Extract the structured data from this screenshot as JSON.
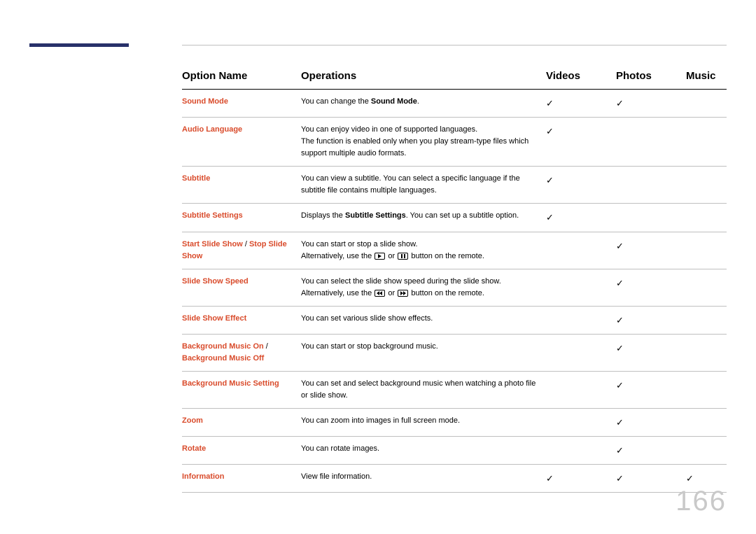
{
  "accent_color": "#d94b2b",
  "header_rule_color": "#28316a",
  "page_number": "166",
  "columns": {
    "name": "Option Name",
    "ops": "Operations",
    "videos": "Videos",
    "photos": "Photos",
    "music": "Music"
  },
  "tick_glyph": "✓",
  "rows": {
    "sound_mode": {
      "name_html": "Sound Mode",
      "ops_pre": "You can change the ",
      "ops_bold": "Sound Mode",
      "ops_post": ".",
      "videos": true,
      "photos": true,
      "music": false
    },
    "audio_language": {
      "name_html": "Audio Language",
      "ops_line1": "You can enjoy video in one of supported languages.",
      "ops_line2": "The function is enabled only when you play stream-type files which support multiple audio formats.",
      "videos": true,
      "photos": false,
      "music": false
    },
    "subtitle": {
      "name_html": "Subtitle",
      "ops": "You can view a subtitle. You can select a specific language if the subtitle file contains multiple languages.",
      "videos": true,
      "photos": false,
      "music": false
    },
    "subtitle_settings": {
      "name_html": "Subtitle Settings",
      "ops_pre": "Displays the ",
      "ops_bold": "Subtitle Settings",
      "ops_post": ". You can set up a subtitle option.",
      "videos": true,
      "photos": false,
      "music": false
    },
    "slide_show_toggle": {
      "name_part1": "Start Slide Show",
      "name_sep": " / ",
      "name_part2": "Stop Slide Show",
      "ops_line1": "You can start or stop a slide show.",
      "ops_line2a": "Alternatively, use the ",
      "ops_line2b": " or ",
      "ops_line2c": " button on the remote.",
      "videos": false,
      "photos": true,
      "music": false
    },
    "slide_show_speed": {
      "name_html": "Slide Show Speed",
      "ops_line1": "You can select the slide show speed during the slide show.",
      "ops_line2a": "Alternatively, use the ",
      "ops_line2b": " or ",
      "ops_line2c": " button on the remote.",
      "videos": false,
      "photos": true,
      "music": false
    },
    "slide_show_effect": {
      "name_html": "Slide Show Effect",
      "ops": "You can set various slide show effects.",
      "videos": false,
      "photos": true,
      "music": false
    },
    "bg_music_toggle": {
      "name_part1": "Background Music On",
      "name_sep": " / ",
      "name_part2": "Background Music Off",
      "ops": "You can start or stop background music.",
      "videos": false,
      "photos": true,
      "music": false
    },
    "bg_music_setting": {
      "name_html": "Background Music Setting",
      "ops": "You can set and select background music when watching a photo file or slide show.",
      "videos": false,
      "photos": true,
      "music": false
    },
    "zoom": {
      "name_html": "Zoom",
      "ops": "You can zoom into images in full screen mode.",
      "videos": false,
      "photos": true,
      "music": false
    },
    "rotate": {
      "name_html": "Rotate",
      "ops": "You can rotate images.",
      "videos": false,
      "photos": true,
      "music": false
    },
    "information": {
      "name_html": "Information",
      "ops": "View file information.",
      "videos": true,
      "photos": true,
      "music": true
    }
  }
}
